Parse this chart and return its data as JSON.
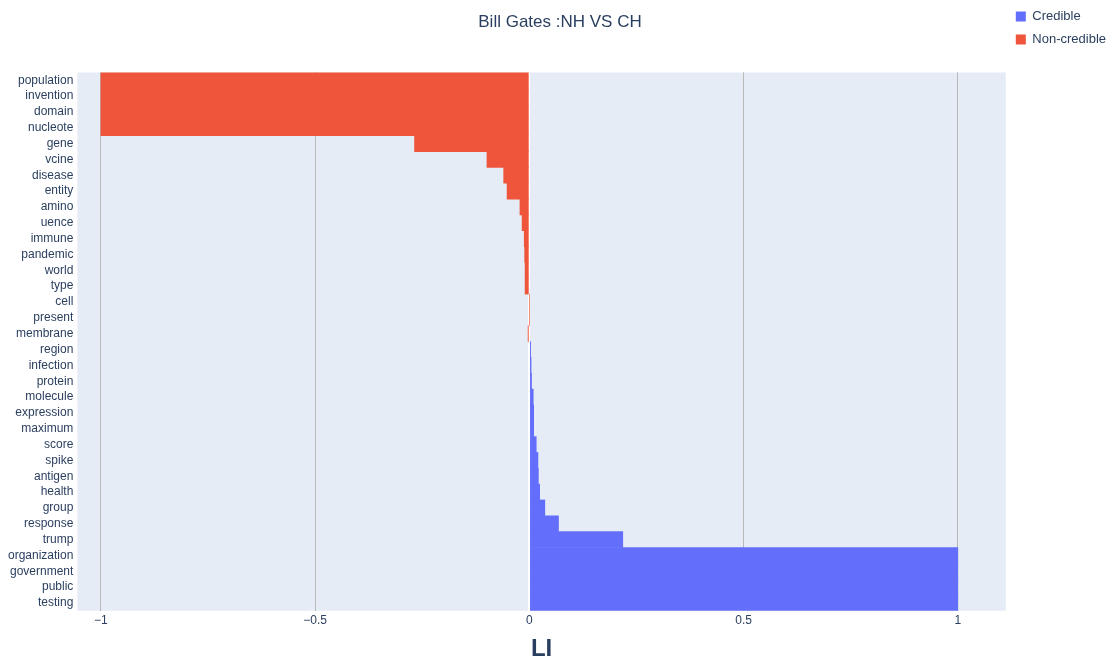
{
  "chart_data": {
    "type": "bar",
    "orientation": "horizontal",
    "stacked": true,
    "title": "Bill Gates :NH VS CH",
    "xlabel": "LI",
    "categories": [
      "population",
      "invention",
      "domain",
      "nucleote",
      "gene",
      "vcine",
      "disease",
      "entity",
      "amino",
      "uence",
      "immune",
      "pandemic",
      "world",
      "type",
      "cell",
      "present",
      "membrane",
      "region",
      "infection",
      "protein",
      "molecule",
      "expression",
      "maximum",
      "score",
      "spike",
      "antigen",
      "health",
      "group",
      "response",
      "trump",
      "organization",
      "government",
      "public",
      "testing"
    ],
    "series": [
      {
        "name": "Credible",
        "color": "#636efa",
        "values": [
          null,
          null,
          null,
          null,
          null,
          null,
          null,
          null,
          null,
          null,
          null,
          null,
          null,
          null,
          null,
          null,
          null,
          0.003,
          0.004,
          0.005,
          0.009,
          0.01,
          0.01,
          0.016,
          0.02,
          0.021,
          0.024,
          0.036,
          0.068,
          0.218,
          1,
          1,
          1,
          1
        ]
      },
      {
        "name": "Non-credible",
        "color": "#ef553b",
        "values": [
          -1,
          -1,
          -1,
          -1,
          -0.268,
          -0.099,
          -0.06,
          -0.052,
          -0.022,
          -0.017,
          -0.012,
          -0.011,
          -0.01,
          -0.01,
          0,
          0,
          -0.003,
          null,
          null,
          null,
          null,
          null,
          null,
          null,
          null,
          null,
          null,
          null,
          null,
          null,
          null,
          null,
          null,
          null
        ]
      }
    ],
    "xlim": [
      -1.055,
      1.112
    ],
    "xticks": [
      {
        "value": -1,
        "label": "−1"
      },
      {
        "value": -0.5,
        "label": "−0.5"
      },
      0,
      0.5,
      1
    ],
    "grid": "x",
    "legend": "top right"
  }
}
